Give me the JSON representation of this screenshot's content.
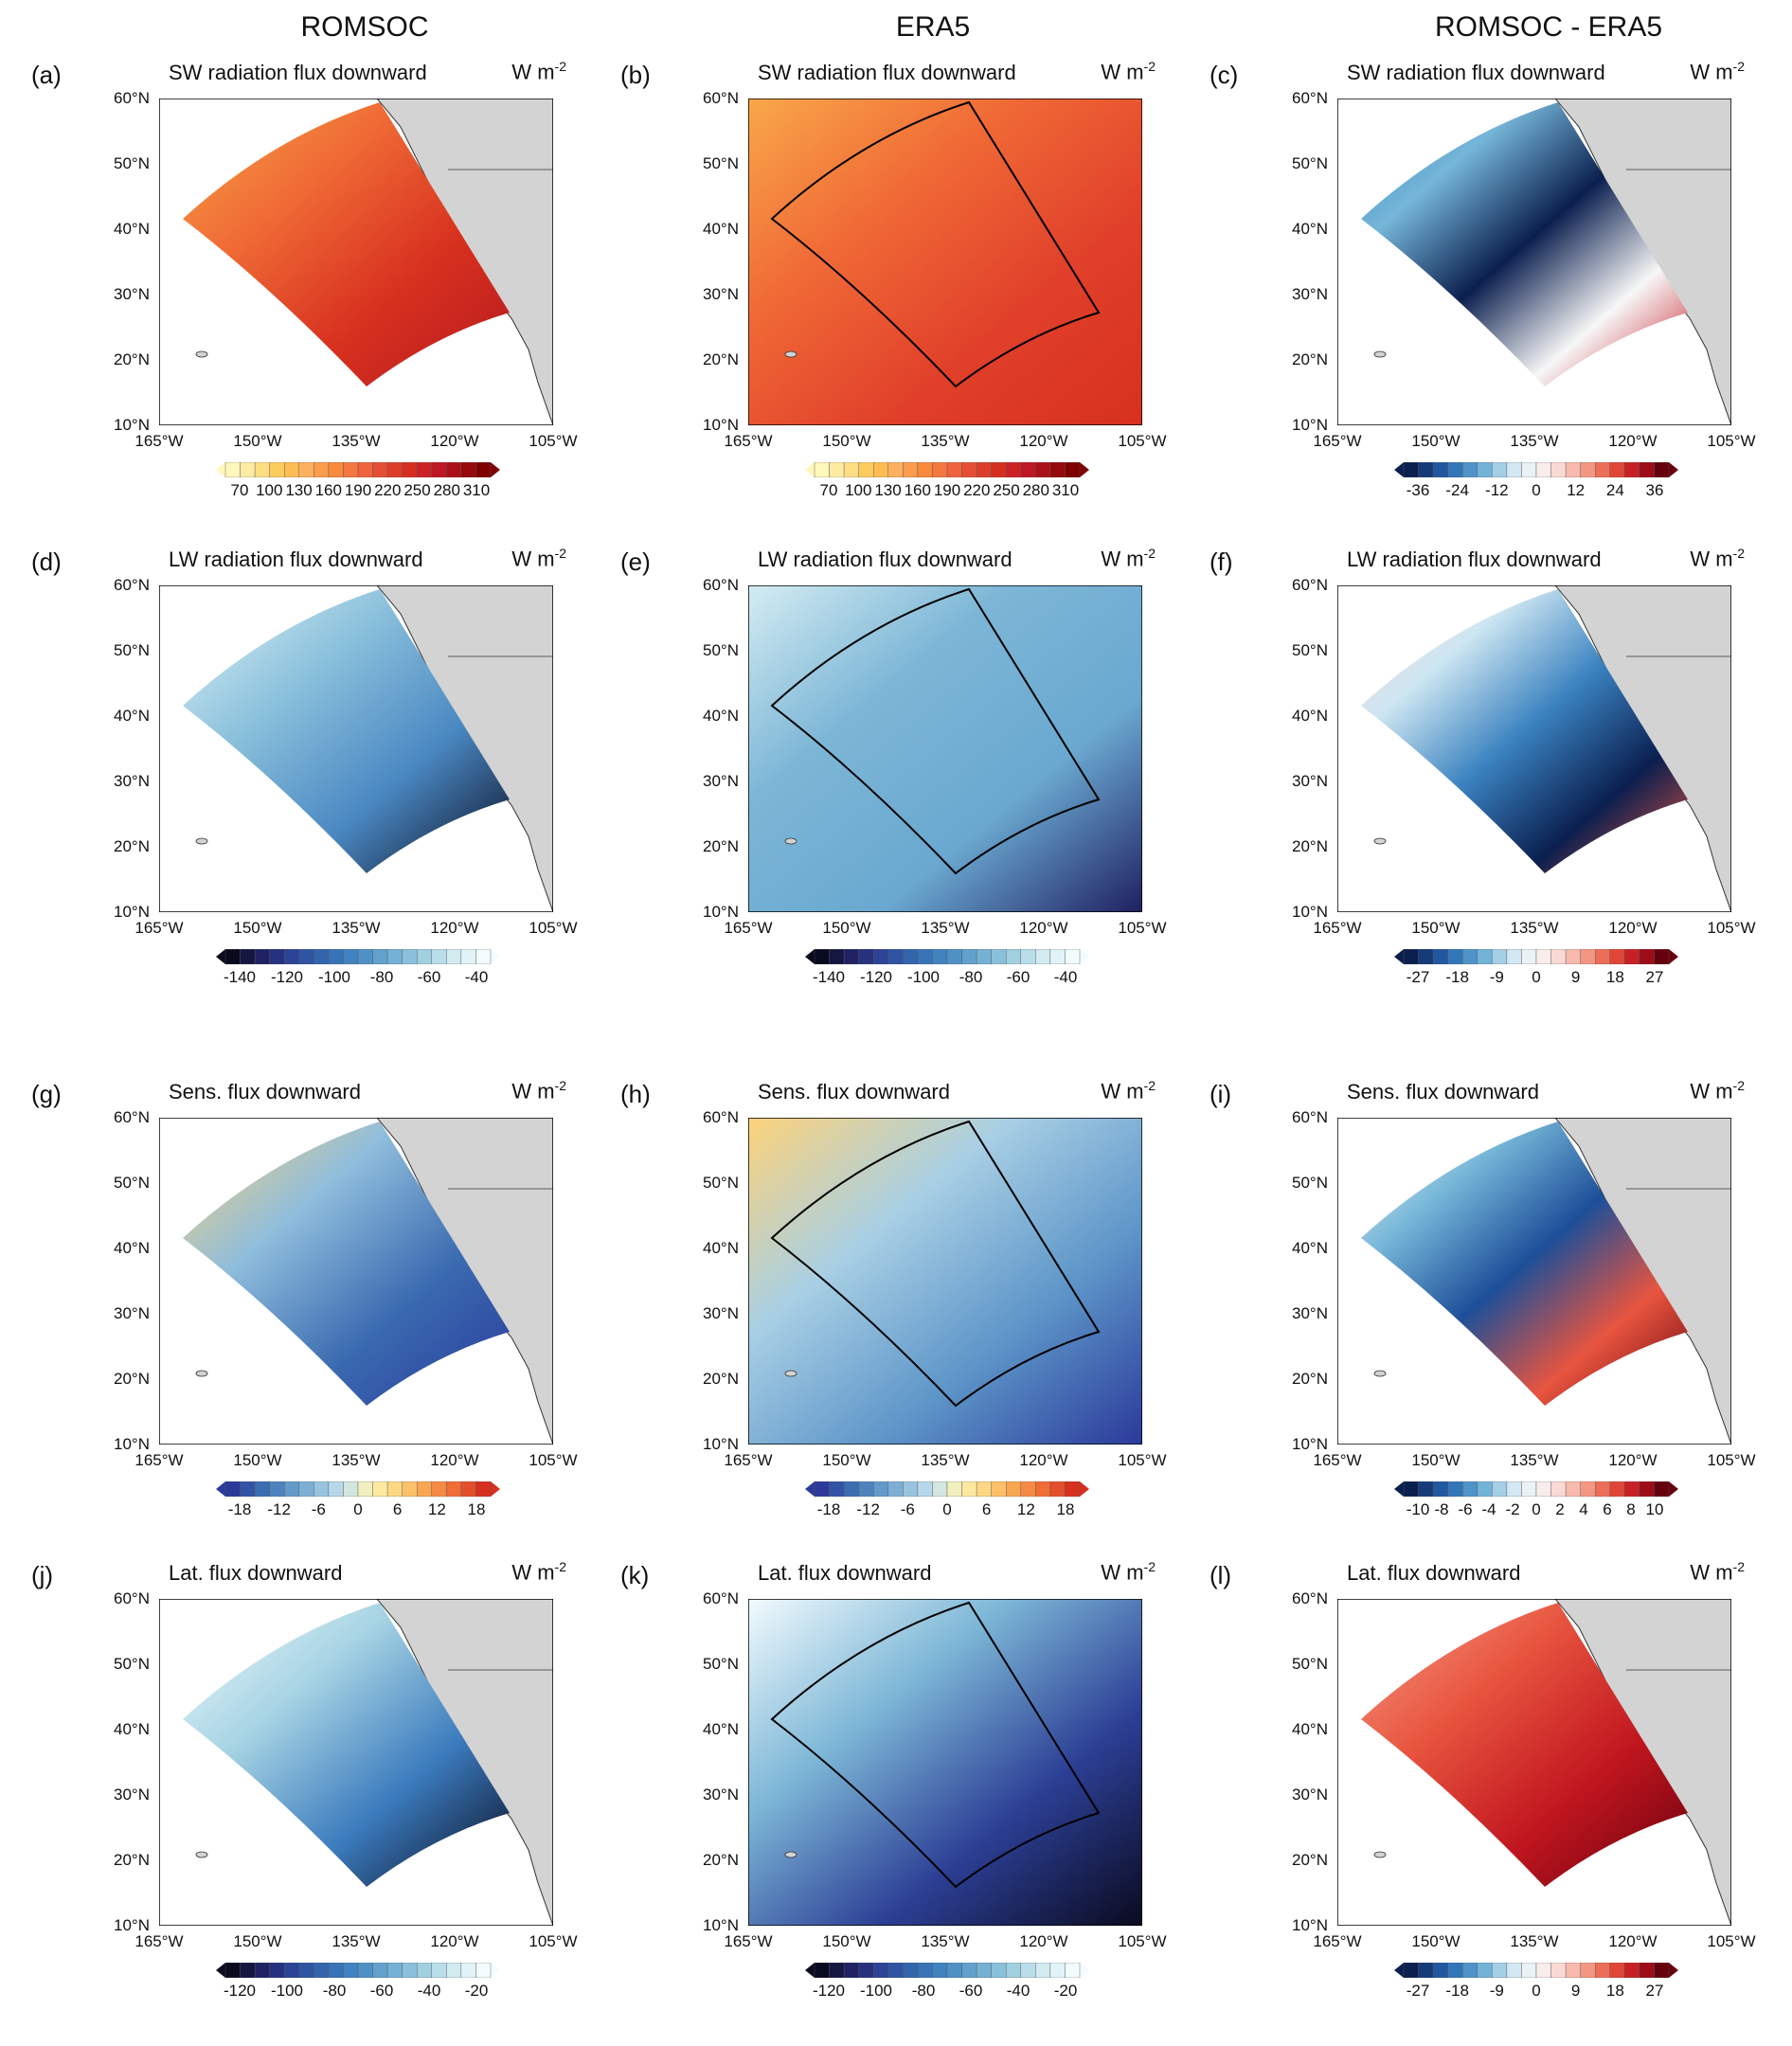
{
  "columns": [
    "ROMSOC",
    "ERA5",
    "ROMSOC - ERA5"
  ],
  "axes": {
    "lat_labels": [
      "60°N",
      "50°N",
      "40°N",
      "30°N",
      "20°N",
      "10°N"
    ],
    "lon_labels": [
      "165°W",
      "150°W",
      "135°W",
      "120°W",
      "105°W"
    ]
  },
  "unit": {
    "base": "W m",
    "exp": "-2"
  },
  "palettes": {
    "sw": [
      "#fff7bc",
      "#fee391",
      "#fec44f",
      "#fdae61",
      "#f98e3a",
      "#f46d43",
      "#e34a33",
      "#d7301f",
      "#c51b29",
      "#a50f15",
      "#7f0000"
    ],
    "lw": [
      "#0a0a1e",
      "#1f2060",
      "#2c3f95",
      "#3060a8",
      "#3b7bbd",
      "#5698c8",
      "#7cb6d6",
      "#a6d3e3",
      "#d4ecf2",
      "#f2fbfd"
    ],
    "sens": [
      "#2b3a9a",
      "#3a6ab0",
      "#5d95c8",
      "#8fbddc",
      "#c6e2ee",
      "#fff3b0",
      "#fdd27a",
      "#f9a04e",
      "#ef6a35",
      "#d7301f"
    ],
    "div": [
      "#0b1f4f",
      "#1d4f99",
      "#3a82c0",
      "#75b6d8",
      "#cde6f2",
      "#f7f7f7",
      "#fbd5d0",
      "#f59b86",
      "#e8553f",
      "#c1161f",
      "#67000d"
    ]
  },
  "panels": [
    {
      "letter": "(a)",
      "title": "SW radiation flux downward",
      "source": "ROMSOC",
      "palette": "sw",
      "cbar": [
        "70",
        "100",
        "130",
        "160",
        "190",
        "220",
        "250",
        "280",
        "310"
      ],
      "fill": [
        "#f7a447",
        "#ef6a35",
        "#d7301f",
        "#b51a1f"
      ]
    },
    {
      "letter": "(b)",
      "title": "SW radiation flux downward",
      "source": "ERA5",
      "palette": "sw",
      "cbar": [
        "70",
        "100",
        "130",
        "160",
        "190",
        "220",
        "250",
        "280",
        "310"
      ],
      "fill": [
        "#f8a84a",
        "#f06a36",
        "#e0402a",
        "#d7301f"
      ]
    },
    {
      "letter": "(c)",
      "title": "SW radiation flux downward",
      "source": "ROMSOC - ERA5",
      "palette": "div",
      "cbar": [
        "-36",
        "-24",
        "-12",
        "0",
        "12",
        "24",
        "36"
      ],
      "fill": [
        "#3a82c0",
        "#75b6d8",
        "#0b1f4f",
        "#f7f7f7",
        "#c1161f"
      ]
    },
    {
      "letter": "(d)",
      "title": "LW radiation flux downward",
      "source": "ROMSOC",
      "palette": "lw",
      "cbar": [
        "-140",
        "-120",
        "-100",
        "-80",
        "-60",
        "-40"
      ],
      "fill": [
        "#e4f3f8",
        "#8cc2dc",
        "#4a88c2",
        "#0a0a1e"
      ]
    },
    {
      "letter": "(e)",
      "title": "LW radiation flux downward",
      "source": "ERA5",
      "palette": "lw",
      "cbar": [
        "-140",
        "-120",
        "-100",
        "-80",
        "-60",
        "-40"
      ],
      "fill": [
        "#d4ecf2",
        "#7cb6d6",
        "#6aa8d0",
        "#1f2060"
      ]
    },
    {
      "letter": "(f)",
      "title": "LW radiation flux downward",
      "source": "ROMSOC - ERA5",
      "palette": "div",
      "cbar": [
        "-27",
        "-18",
        "-9",
        "0",
        "9",
        "18",
        "27"
      ],
      "fill": [
        "#fbd5d0",
        "#cde6f2",
        "#3a82c0",
        "#0b1f4f",
        "#e8553f"
      ]
    },
    {
      "letter": "(g)",
      "title": "Sens. flux downward",
      "source": "ROMSOC",
      "palette": "sens",
      "cbar": [
        "-18",
        "-12",
        "-6",
        "0",
        "6",
        "12",
        "18"
      ],
      "fill": [
        "#fdd27a",
        "#8fbddc",
        "#3a6ab0",
        "#2b3a9a"
      ]
    },
    {
      "letter": "(h)",
      "title": "Sens. flux downward",
      "source": "ERA5",
      "palette": "sens",
      "cbar": [
        "-18",
        "-12",
        "-6",
        "0",
        "6",
        "12",
        "18"
      ],
      "fill": [
        "#fdd27a",
        "#a8cfe4",
        "#5d95c8",
        "#2b3a9a"
      ]
    },
    {
      "letter": "(i)",
      "title": "Sens. flux downward",
      "source": "ROMSOC - ERA5",
      "palette": "div",
      "cbar": [
        "-10",
        "-8",
        "-6",
        "-4",
        "-2",
        "0",
        "2",
        "4",
        "6",
        "8",
        "10"
      ],
      "fill": [
        "#f7f7f7",
        "#75b6d8",
        "#1d4f99",
        "#e8553f",
        "#67000d"
      ]
    },
    {
      "letter": "(j)",
      "title": "Lat. flux downward",
      "source": "ROMSOC",
      "palette": "lw",
      "cbar": [
        "-120",
        "-100",
        "-80",
        "-60",
        "-40",
        "-20"
      ],
      "fill": [
        "#f2fbfd",
        "#a6d3e3",
        "#3b7bbd",
        "#0a0a1e"
      ]
    },
    {
      "letter": "(k)",
      "title": "Lat. flux downward",
      "source": "ERA5",
      "palette": "lw",
      "cbar": [
        "-120",
        "-100",
        "-80",
        "-60",
        "-40",
        "-20"
      ],
      "fill": [
        "#f2fbfd",
        "#7cb6d6",
        "#2c3f95",
        "#0a0a1e"
      ]
    },
    {
      "letter": "(l)",
      "title": "Lat. flux downward",
      "source": "ROMSOC - ERA5",
      "palette": "div",
      "cbar": [
        "-27",
        "-18",
        "-9",
        "0",
        "9",
        "18",
        "27"
      ],
      "fill": [
        "#f59b86",
        "#e8553f",
        "#c1161f",
        "#67000d"
      ]
    }
  ]
}
